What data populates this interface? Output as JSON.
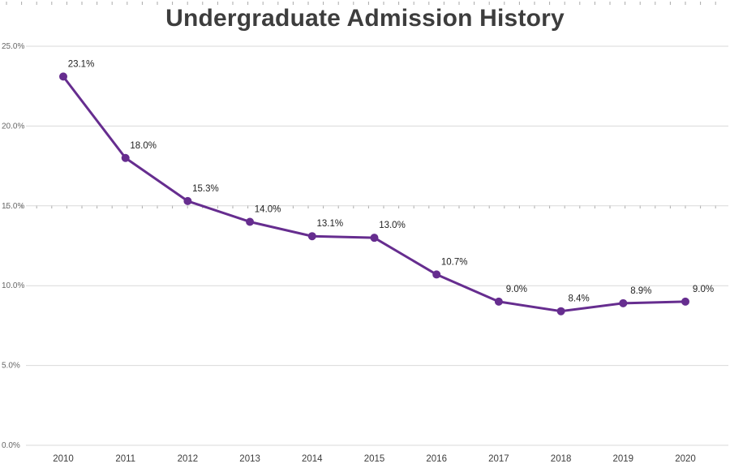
{
  "chart_data": {
    "type": "line",
    "title": "Undergraduate Admission History",
    "categories": [
      "2010",
      "2011",
      "2012",
      "2013",
      "2014",
      "2015",
      "2016",
      "2017",
      "2018",
      "2019",
      "2020"
    ],
    "values": [
      23.1,
      18.0,
      15.3,
      14.0,
      13.1,
      13.0,
      10.7,
      9.0,
      8.4,
      8.9,
      9.0
    ],
    "point_labels": [
      "23.1%",
      "18.0%",
      "15.3%",
      "14.0%",
      "13.1%",
      "13.0%",
      "10.7%",
      "9.0%",
      "8.4%",
      "8.9%",
      "9.0%"
    ],
    "xlabel": "",
    "ylabel": "",
    "ylim": [
      0,
      25
    ],
    "yticks": {
      "values": [
        0,
        5,
        10,
        15,
        20,
        25
      ],
      "labels": [
        "0.0%",
        "5.0%",
        "10.0%",
        "15.0%",
        "20.0%",
        "25.0%"
      ]
    },
    "grid": true,
    "legend": "none",
    "colors": {
      "line": "#662d8f",
      "grid": "#d9d9d9",
      "tick": "#aaaaaa",
      "axis_text": "#666666",
      "axis_text_x": "#3d3d3d",
      "label_text": "#222222",
      "title": "#3d3d3d"
    }
  }
}
